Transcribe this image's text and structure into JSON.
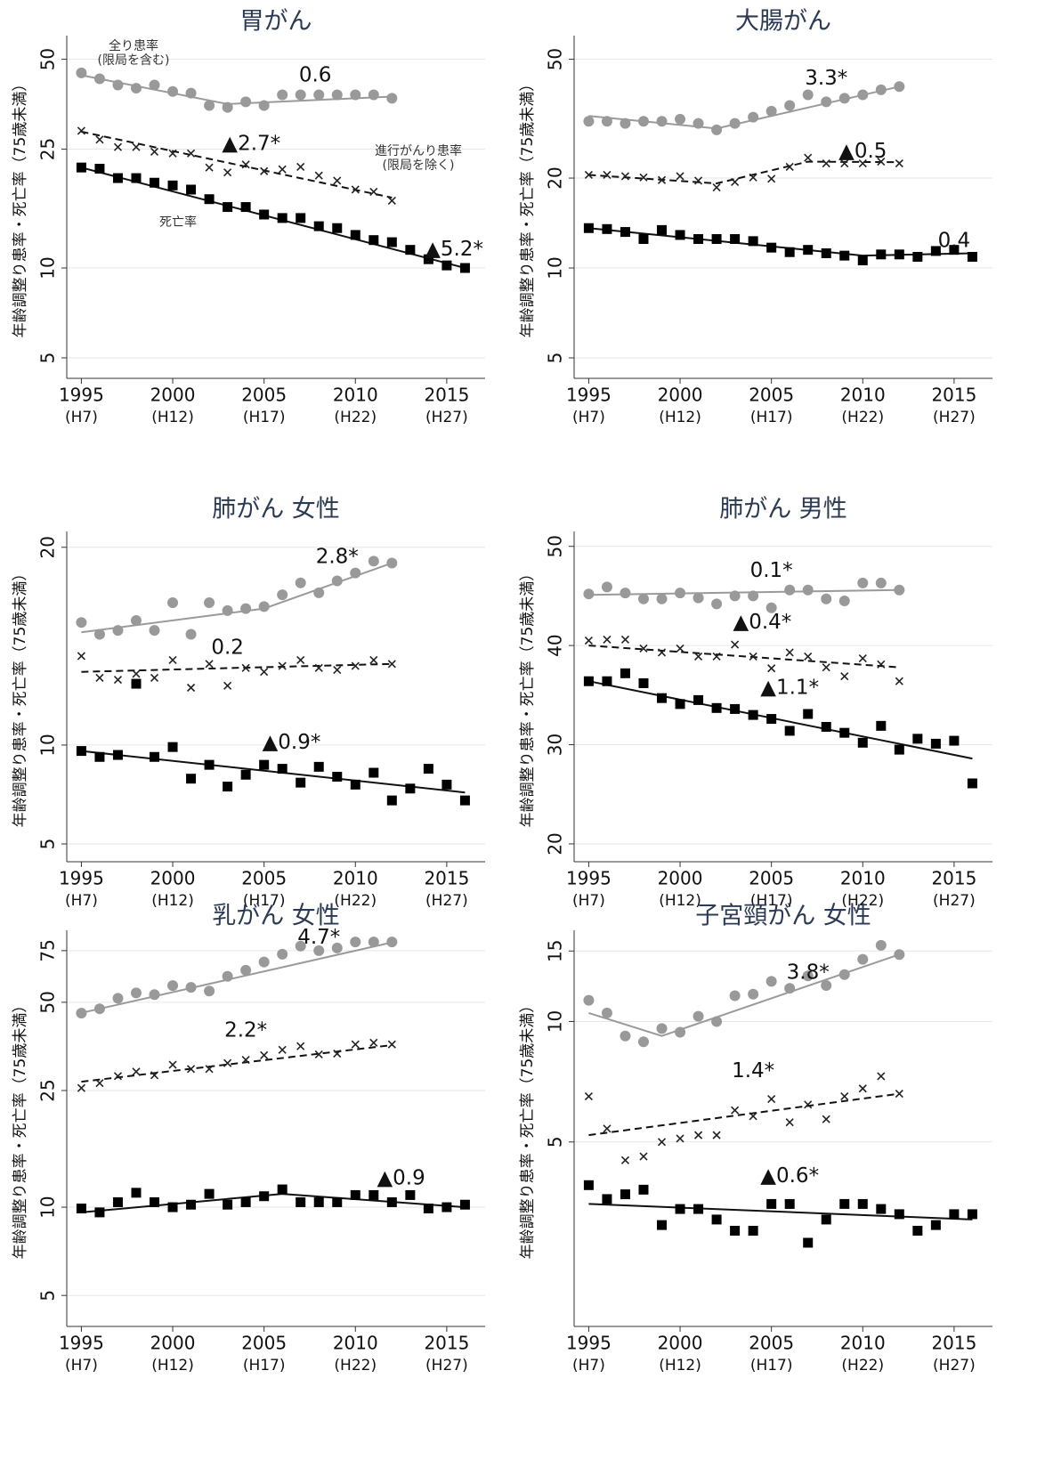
{
  "chart_data": [
    {
      "type": "line",
      "title": "胃がん",
      "ylabel": "年齢調整り患率・死亡率（75歳未満）",
      "log": true,
      "grid": true,
      "x": [
        1995,
        1996,
        1997,
        1998,
        1999,
        2000,
        2001,
        2002,
        2003,
        2004,
        2005,
        2006,
        2007,
        2008,
        2009,
        2010,
        2011,
        2012,
        2013,
        2014,
        2015,
        2016
      ],
      "xlim": [
        1994.2,
        2017.1
      ],
      "xticks": [
        1995,
        2000,
        2005,
        2010,
        2015
      ],
      "xtick_sublabels": [
        "(H7)",
        "(H12)",
        "(H17)",
        "(H22)",
        "(H27)"
      ],
      "ylim": [
        4.27,
        60
      ],
      "yticks": [
        5,
        10,
        25,
        50
      ],
      "series": [
        {
          "name": "全り患率 (限局を含む)",
          "marker": "circle",
          "color": "#999999",
          "line_style": "solid",
          "values": [
            45,
            43,
            41,
            40,
            41,
            39,
            38.5,
            35,
            34.5,
            36,
            35,
            38,
            38,
            38,
            38,
            38,
            38,
            37,
            null,
            null,
            null,
            null
          ],
          "trend": {
            "x": [
              1995,
              2003,
              2012
            ],
            "values": [
              44.2,
              35.4,
              37.5
            ]
          }
        },
        {
          "name": "進行がんり患率 (限局を除く)",
          "marker": "x",
          "color": "#222222",
          "line_style": "dashed",
          "values": [
            28.8,
            26.9,
            25.4,
            25.4,
            24.5,
            24.2,
            24.2,
            21.7,
            20.9,
            22.2,
            21.1,
            21.4,
            21.8,
            20.4,
            19.6,
            18.3,
            18.0,
            16.8,
            null,
            null,
            null,
            null
          ],
          "trend": {
            "x": [
              1995,
              2012
            ],
            "values": [
              28.6,
              17.2
            ]
          }
        },
        {
          "name": "死亡率",
          "marker": "square",
          "color": "#000000",
          "line_style": "solid",
          "values": [
            21.7,
            21.5,
            20.0,
            20.0,
            19.3,
            18.9,
            18.3,
            17.0,
            16.0,
            16.0,
            15.1,
            14.7,
            14.7,
            13.8,
            13.6,
            12.9,
            12.4,
            12.2,
            11.5,
            10.7,
            10.2,
            10.0
          ],
          "trend": {
            "x": [
              1995,
              2016
            ],
            "values": [
              21.7,
              10
            ]
          }
        }
      ],
      "annotations": [
        "0.6",
        "▲2.7*",
        "▲5.2*"
      ]
    },
    {
      "type": "line",
      "title": "大腸がん",
      "ylabel": "年齢調整り患率・死亡率（75歳未満）",
      "log": true,
      "grid": true,
      "x": [
        1995,
        1996,
        1997,
        1998,
        1999,
        2000,
        2001,
        2002,
        2003,
        2004,
        2005,
        2006,
        2007,
        2008,
        2009,
        2010,
        2011,
        2012,
        2013,
        2014,
        2015,
        2016
      ],
      "xlim": [
        1994.2,
        2017.1
      ],
      "xticks": [
        1995,
        2000,
        2005,
        2010,
        2015
      ],
      "xtick_sublabels": [
        "(H7)",
        "(H12)",
        "(H17)",
        "(H22)",
        "(H27)"
      ],
      "ylim": [
        4.27,
        60
      ],
      "yticks": [
        5,
        10,
        20,
        50
      ],
      "series": [
        {
          "marker": "circle",
          "color": "#999999",
          "line_style": "solid",
          "values": [
            31,
            31,
            30.5,
            31,
            31,
            31.5,
            30.5,
            29,
            30.5,
            32,
            33.5,
            35,
            38,
            36,
            37,
            38,
            39.5,
            40.5,
            null,
            null,
            null,
            null
          ],
          "trend": {
            "x": [
              1995,
              2002,
              2012
            ],
            "values": [
              32.3,
              29.3,
              40.5
            ]
          }
        },
        {
          "marker": "x",
          "color": "#222222",
          "line_style": "dashed",
          "values": [
            20.5,
            20.5,
            20.3,
            20.1,
            19.7,
            20.3,
            19.6,
            18.6,
            19.4,
            20.1,
            19.9,
            21.8,
            23.4,
            22.4,
            22.4,
            22.4,
            22.7,
            22.4,
            null,
            null,
            null,
            null
          ],
          "trend": {
            "x": [
              1995,
              2002,
              2007,
              2012
            ],
            "values": [
              20.5,
              19.2,
              22.7,
              22.6
            ]
          }
        },
        {
          "marker": "square",
          "color": "#000000",
          "line_style": "solid",
          "values": [
            13.6,
            13.5,
            13.2,
            12.5,
            13.4,
            12.9,
            12.5,
            12.5,
            12.5,
            12.3,
            11.7,
            11.3,
            11.5,
            11.2,
            11.0,
            10.6,
            11.1,
            11.1,
            10.9,
            11.4,
            11.5,
            10.9
          ],
          "trend": {
            "x": [
              1995,
              2010,
              2016
            ],
            "values": [
              13.6,
              11.0,
              11.2
            ]
          }
        }
      ],
      "annotations": [
        "3.3*",
        "▲0.5",
        "0.4"
      ]
    },
    {
      "type": "line",
      "title": "肺がん 女性",
      "ylabel": "年齢調整り患率・死亡率（75歳未満）",
      "log": false,
      "grid": true,
      "x": [
        1995,
        1996,
        1997,
        1998,
        1999,
        2000,
        2001,
        2002,
        2003,
        2004,
        2005,
        2006,
        2007,
        2008,
        2009,
        2010,
        2011,
        2012,
        2013,
        2014,
        2015,
        2016
      ],
      "xlim": [
        1994.2,
        2017.1
      ],
      "xticks": [
        1995,
        2000,
        2005,
        2010,
        2015
      ],
      "xtick_sublabels": [
        "(H7)",
        "(H12)",
        "(H17)",
        "(H22)",
        "(H27)"
      ],
      "ylim": [
        4.1,
        20.8
      ],
      "yticks": [
        5,
        10,
        20
      ],
      "series": [
        {
          "marker": "circle",
          "color": "#999999",
          "line_style": "solid",
          "values": [
            16.2,
            15.6,
            15.8,
            16.3,
            15.8,
            17.2,
            15.6,
            17.2,
            16.8,
            16.9,
            17.0,
            17.6,
            18.2,
            17.7,
            18.3,
            18.7,
            19.3,
            19.2,
            null,
            null,
            null,
            null
          ],
          "trend": {
            "x": [
              1995,
              2005,
              2012
            ],
            "values": [
              15.7,
              16.9,
              19.2
            ]
          }
        },
        {
          "marker": "x",
          "color": "#222222",
          "line_style": "dashed",
          "values": [
            14.5,
            13.4,
            13.3,
            13.6,
            13.4,
            14.3,
            12.9,
            14.1,
            13.0,
            13.9,
            13.7,
            14.0,
            14.3,
            13.9,
            13.8,
            14.0,
            14.3,
            14.1,
            null,
            null,
            null,
            null
          ],
          "trend": {
            "x": [
              1995,
              2012
            ],
            "values": [
              13.7,
              14.1
            ]
          }
        },
        {
          "marker": "square",
          "color": "#000000",
          "line_style": "solid",
          "values": [
            9.7,
            9.4,
            9.5,
            13.1,
            9.4,
            9.9,
            8.3,
            9.0,
            7.9,
            8.5,
            9.0,
            8.8,
            8.1,
            8.9,
            8.4,
            8.0,
            8.6,
            7.2,
            7.8,
            8.8,
            8.0,
            7.2
          ],
          "trend": {
            "x": [
              1995,
              2016
            ],
            "values": [
              9.7,
              7.6
            ]
          }
        }
      ],
      "annotations": [
        "2.8*",
        "0.2",
        "▲0.9*"
      ]
    },
    {
      "type": "line",
      "title": "肺がん 男性",
      "ylabel": "年齢調整り患率・死亡率（75歳未満）",
      "log": false,
      "grid": true,
      "x": [
        1995,
        1996,
        1997,
        1998,
        1999,
        2000,
        2001,
        2002,
        2003,
        2004,
        2005,
        2006,
        2007,
        2008,
        2009,
        2010,
        2011,
        2012,
        2013,
        2014,
        2015,
        2016
      ],
      "xlim": [
        1994.2,
        2017.1
      ],
      "xticks": [
        1995,
        2000,
        2005,
        2010,
        2015
      ],
      "xtick_sublabels": [
        "(H7)",
        "(H12)",
        "(H17)",
        "(H22)",
        "(H27)"
      ],
      "ylim": [
        18.2,
        51.5
      ],
      "yticks": [
        20,
        30,
        40,
        50
      ],
      "series": [
        {
          "marker": "circle",
          "color": "#999999",
          "line_style": "solid",
          "values": [
            45.2,
            45.9,
            45.3,
            44.7,
            44.7,
            45.3,
            44.8,
            44.2,
            45.0,
            45.0,
            43.8,
            45.6,
            45.6,
            44.7,
            44.5,
            46.3,
            46.3,
            45.6,
            null,
            null,
            null,
            null
          ],
          "trend": {
            "x": [
              1995,
              2012
            ],
            "values": [
              45.1,
              45.6
            ]
          }
        },
        {
          "marker": "x",
          "color": "#222222",
          "line_style": "dashed",
          "values": [
            40.5,
            40.6,
            40.6,
            39.7,
            39.3,
            39.7,
            38.9,
            38.9,
            40.1,
            38.9,
            37.7,
            39.3,
            38.9,
            37.8,
            36.9,
            38.7,
            38.1,
            36.4,
            null,
            null,
            null,
            null
          ],
          "trend": {
            "x": [
              1995,
              2012
            ],
            "values": [
              40.0,
              37.8
            ]
          }
        },
        {
          "marker": "square",
          "color": "#000000",
          "line_style": "solid",
          "values": [
            36.4,
            36.4,
            37.2,
            36.2,
            34.7,
            34.1,
            34.5,
            33.7,
            33.6,
            33.0,
            32.6,
            31.4,
            33.1,
            31.8,
            31.2,
            30.2,
            31.9,
            29.5,
            30.6,
            30.1,
            30.4,
            26.1
          ],
          "trend": {
            "x": [
              1995,
              2016
            ],
            "values": [
              36.4,
              28.6
            ]
          }
        }
      ],
      "annotations": [
        "0.1*",
        "▲0.4*",
        "▲1.1*"
      ]
    },
    {
      "type": "line",
      "title": "乳がん 女性",
      "ylabel": "年齢調整り患率・死亡率（75歳未満）",
      "log": true,
      "grid": true,
      "x": [
        1995,
        1996,
        1997,
        1998,
        1999,
        2000,
        2001,
        2002,
        2003,
        2004,
        2005,
        2006,
        2007,
        2008,
        2009,
        2010,
        2011,
        2012,
        2013,
        2014,
        2015,
        2016
      ],
      "xlim": [
        1994.2,
        2017.1
      ],
      "xticks": [
        1995,
        2000,
        2005,
        2010,
        2015
      ],
      "xtick_sublabels": [
        "(H7)",
        "(H12)",
        "(H17)",
        "(H22)",
        "(H27)"
      ],
      "ylim": [
        3.92,
        88
      ],
      "yticks": [
        5,
        10,
        25,
        50,
        75
      ],
      "series": [
        {
          "marker": "circle",
          "color": "#999999",
          "line_style": "solid",
          "values": [
            45.9,
            47.5,
            51.6,
            53.8,
            53.1,
            57.0,
            56.2,
            54.6,
            61.3,
            64.3,
            68.6,
            72.9,
            77.7,
            75.0,
            76.6,
            80.3,
            80.3,
            80.3,
            null,
            null,
            null,
            null
          ],
          "trend": {
            "x": [
              1995,
              2012
            ],
            "values": [
              46,
              80
            ]
          }
        },
        {
          "marker": "x",
          "color": "#222222",
          "line_style": "dashed",
          "values": [
            25.5,
            26.5,
            28.0,
            29.0,
            28.2,
            30.6,
            29.6,
            29.6,
            31.0,
            31.8,
            33.0,
            34.4,
            35.4,
            33.2,
            33.4,
            35.9,
            36.4,
            35.9,
            null,
            null,
            null,
            null
          ],
          "trend": {
            "x": [
              1995,
              2012
            ],
            "values": [
              26.8,
              35.7
            ]
          }
        },
        {
          "marker": "square",
          "color": "#000000",
          "line_style": "solid",
          "values": [
            9.9,
            9.6,
            10.4,
            11.2,
            10.4,
            10.0,
            10.2,
            11.1,
            10.2,
            10.4,
            10.9,
            11.5,
            10.4,
            10.4,
            10.4,
            11.0,
            11.0,
            10.4,
            11.0,
            9.9,
            10.0,
            10.2
          ],
          "trend": {
            "x": [
              1995,
              2006,
              2016
            ],
            "values": [
              9.6,
              11.1,
              10.0
            ]
          }
        }
      ],
      "annotations": [
        "4.7*",
        "2.2*",
        "▲0.9"
      ]
    },
    {
      "type": "line",
      "title": "子宮頸がん 女性",
      "ylabel": "年齢調整り患率・死亡率（75歳未満）",
      "log": true,
      "grid": true,
      "x": [
        1995,
        1996,
        1997,
        1998,
        1999,
        2000,
        2001,
        2002,
        2003,
        2004,
        2005,
        2006,
        2007,
        2008,
        2009,
        2010,
        2011,
        2012,
        2013,
        2014,
        2015,
        2016
      ],
      "xlim": [
        1994.2,
        2017.1
      ],
      "xticks": [
        1995,
        2000,
        2005,
        2010,
        2015
      ],
      "xtick_sublabels": [
        "(H7)",
        "(H12)",
        "(H17)",
        "(H22)",
        "(H27)"
      ],
      "ylim": [
        1.73,
        16.9
      ],
      "yticks": [
        5,
        10,
        15
      ],
      "series": [
        {
          "marker": "circle",
          "color": "#999999",
          "line_style": "solid",
          "values": [
            11.3,
            10.5,
            9.2,
            8.9,
            9.6,
            9.4,
            10.3,
            10.0,
            11.6,
            11.7,
            12.6,
            12.1,
            13.0,
            12.3,
            13.1,
            14.3,
            15.5,
            14.7,
            null,
            null,
            null,
            null
          ],
          "trend": {
            "x": [
              1995,
              1999,
              2012
            ],
            "values": [
              10.5,
              9.2,
              14.7
            ]
          }
        },
        {
          "marker": "x",
          "color": "#222222",
          "line_style": "dashed",
          "values": [
            6.5,
            5.4,
            4.5,
            4.6,
            5.0,
            5.1,
            5.2,
            5.2,
            6.0,
            5.8,
            6.4,
            5.6,
            6.2,
            5.7,
            6.5,
            6.8,
            7.3,
            6.6,
            null,
            null,
            null,
            null
          ],
          "trend": {
            "x": [
              1995,
              2012
            ],
            "values": [
              5.2,
              6.6
            ]
          }
        },
        {
          "marker": "square",
          "color": "#000000",
          "line_style": "solid",
          "values": [
            3.9,
            3.6,
            3.7,
            3.8,
            3.1,
            3.4,
            3.4,
            3.2,
            3.0,
            3.0,
            3.5,
            3.5,
            2.8,
            3.2,
            3.5,
            3.5,
            3.4,
            3.3,
            3.0,
            3.1,
            3.3,
            3.3
          ],
          "trend": {
            "x": [
              1995,
              2016
            ],
            "values": [
              3.5,
              3.2
            ]
          }
        }
      ],
      "annotations": [
        "3.8*",
        "1.4*",
        "▲0.6*"
      ]
    }
  ]
}
